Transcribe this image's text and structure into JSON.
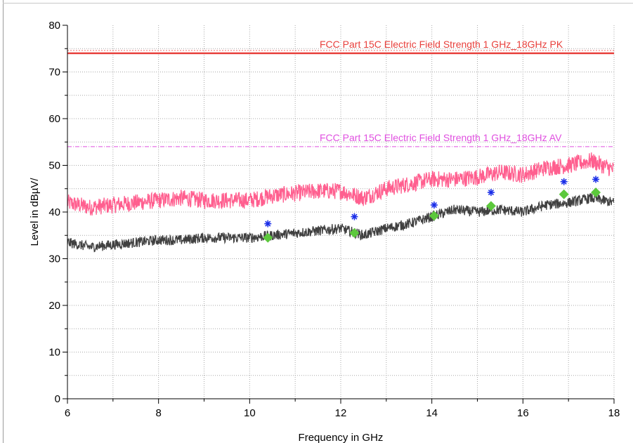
{
  "chart_data": {
    "type": "line",
    "xlabel": "Frequency in GHz",
    "ylabel": "Level in dBµV/",
    "xlim": [
      6,
      18
    ],
    "ylim": [
      0,
      80
    ],
    "x_ticks": [
      6,
      8,
      10,
      12,
      14,
      16,
      18
    ],
    "y_ticks": [
      0,
      10,
      20,
      30,
      40,
      50,
      60,
      70,
      80
    ],
    "grid": true,
    "limit_lines": [
      {
        "label": "FCC Part 15C Electric Field Strength 1 GHz_18GHz PK",
        "value": 74,
        "color": "#e8403c"
      },
      {
        "label": "FCC Part 15C Electric Field Strength 1 GHz_18GHz AV",
        "value": 54,
        "color": "#e050e0"
      }
    ],
    "series": [
      {
        "color": "#ff5f8f",
        "x": [
          6,
          6.5,
          7,
          7.5,
          8,
          8.5,
          9,
          9.5,
          10,
          10.5,
          11,
          11.5,
          12,
          12.5,
          13,
          13.5,
          14,
          14.5,
          15,
          15.5,
          16,
          16.5,
          17,
          17.5,
          18
        ],
        "y": [
          42,
          41,
          41.5,
          42,
          42.5,
          43,
          42.5,
          42.5,
          42.5,
          43.5,
          44,
          44.5,
          44.5,
          43,
          45,
          46,
          47,
          47,
          47.5,
          48.5,
          48,
          49.5,
          50,
          51,
          49
        ]
      },
      {
        "color": "#404040",
        "x": [
          6,
          6.5,
          7,
          7.5,
          8,
          8.5,
          9,
          9.5,
          10,
          10.5,
          11,
          11.5,
          12,
          12.5,
          13,
          13.5,
          14,
          14.5,
          15,
          15.5,
          16,
          16.5,
          17,
          17.5,
          18
        ],
        "y": [
          33.5,
          32.5,
          33,
          33.5,
          34,
          34,
          34.5,
          34.5,
          34.5,
          35,
          35.5,
          36,
          36.5,
          35,
          36.5,
          37.5,
          39,
          40.5,
          40,
          40.5,
          40,
          41.5,
          42,
          43,
          42
        ]
      }
    ],
    "peak_markers": {
      "color": "#1a2ee8",
      "points": [
        [
          10.4,
          37.5
        ],
        [
          12.3,
          39
        ],
        [
          14.05,
          41.5
        ],
        [
          15.3,
          44.2
        ],
        [
          16.9,
          46.5
        ],
        [
          17.6,
          47
        ]
      ]
    },
    "average_markers": {
      "color": "#5cc83c",
      "points": [
        [
          10.4,
          34.5
        ],
        [
          12.3,
          35.5
        ],
        [
          14.05,
          39.2
        ],
        [
          15.3,
          41.3
        ],
        [
          16.9,
          43.8
        ],
        [
          17.6,
          44.2
        ]
      ]
    }
  }
}
